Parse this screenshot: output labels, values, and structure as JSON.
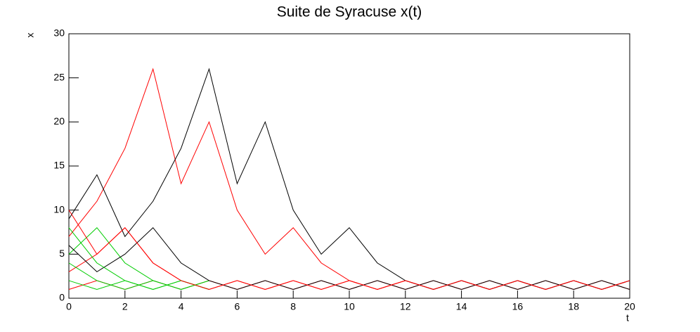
{
  "chart_data": {
    "type": "line",
    "title": "Suite de Syracuse x(t)",
    "x_label": "t",
    "y_label": "x",
    "x": [
      0,
      1,
      2,
      3,
      4,
      5,
      6,
      7,
      8,
      9,
      10,
      11,
      12,
      13,
      14,
      15,
      16,
      17,
      18,
      19,
      20
    ],
    "series": [
      {
        "color": "#ff0000",
        "values": [
          1,
          2,
          1,
          2,
          1,
          2,
          1,
          2,
          1,
          2,
          1,
          2,
          1,
          2,
          1,
          2,
          1,
          2,
          1,
          2,
          1
        ]
      },
      {
        "color": "#00cc00",
        "values": [
          2,
          1,
          2,
          1,
          2,
          1,
          null,
          null,
          null,
          null,
          null,
          null,
          null,
          null,
          null,
          null,
          null,
          null,
          null,
          null,
          null
        ]
      },
      {
        "color": "#ff0000",
        "values": [
          3,
          5,
          8,
          4,
          2,
          1,
          2,
          1,
          2,
          1,
          2,
          1,
          2,
          1,
          2,
          1,
          2,
          1,
          2,
          1,
          2
        ]
      },
      {
        "color": "#00cc00",
        "values": [
          4,
          2,
          1,
          2,
          1,
          2,
          null,
          null,
          null,
          null,
          null,
          null,
          null,
          null,
          null,
          null,
          null,
          null,
          null,
          null,
          null
        ]
      },
      {
        "color": "#00cc00",
        "values": [
          5,
          8,
          4,
          2,
          1,
          2,
          null,
          null,
          null,
          null,
          null,
          null,
          null,
          null,
          null,
          null,
          null,
          null,
          null,
          null,
          null
        ]
      },
      {
        "color": "#000000",
        "values": [
          6,
          3,
          5,
          8,
          4,
          2,
          1,
          2,
          1,
          2,
          1,
          2,
          1,
          2,
          1,
          2,
          1,
          2,
          1,
          2,
          1
        ]
      },
      {
        "color": "#ff0000",
        "values": [
          7,
          11,
          17,
          26,
          13,
          20,
          10,
          5,
          8,
          4,
          2,
          1,
          2,
          1,
          2,
          1,
          2,
          1,
          2,
          1,
          2
        ]
      },
      {
        "color": "#00cc00",
        "values": [
          8,
          4,
          2,
          1,
          2,
          1,
          null,
          null,
          null,
          null,
          null,
          null,
          null,
          null,
          null,
          null,
          null,
          null,
          null,
          null,
          null
        ]
      },
      {
        "color": "#000000",
        "values": [
          9,
          14,
          7,
          11,
          17,
          26,
          13,
          20,
          10,
          5,
          8,
          4,
          2,
          1,
          2,
          1,
          2,
          1,
          2,
          1,
          2
        ]
      },
      {
        "color": "#ff0000",
        "values": [
          10,
          5,
          8,
          4,
          2,
          1,
          2,
          1,
          2,
          1,
          2,
          1,
          2,
          1,
          2,
          1,
          2,
          1,
          2,
          1,
          2
        ]
      }
    ],
    "xlim": [
      0,
      20
    ],
    "ylim": [
      0,
      30
    ],
    "xticks": [
      0,
      2,
      4,
      6,
      8,
      10,
      12,
      14,
      16,
      18,
      20
    ],
    "yticks": [
      0,
      5,
      10,
      15,
      20,
      25,
      30
    ]
  }
}
